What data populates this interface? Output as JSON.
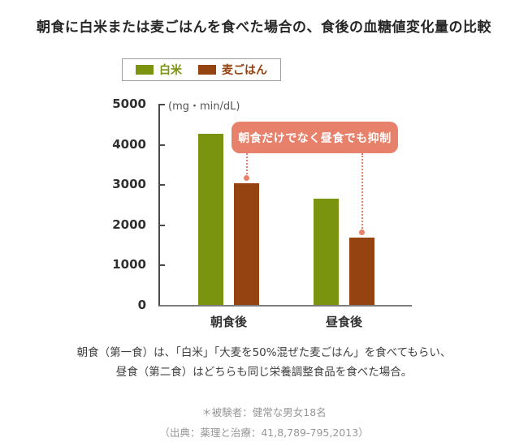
{
  "title": "朝食に白米または麦ごはんを食べた場合の、食後の血糖値変化量の比較",
  "colors": {
    "white_rice_green": "#7a9410",
    "barley_brown": "#964312",
    "annotation": "#e8816b",
    "axis": "#4a4a4a",
    "baseline": "#7d7d7d",
    "title_text": "#262626",
    "note_text": "#404040",
    "citation_text": "#979797"
  },
  "legend": {
    "items": [
      {
        "label": "白米",
        "color": "#7a9410"
      },
      {
        "label": "麦ごはん",
        "color": "#964312"
      }
    ]
  },
  "chart_data": {
    "type": "bar",
    "title": "朝食に白米または麦ごはんを食べた場合の、食後の血糖値変化量の比較",
    "unit_label": "(mg・min/dL)",
    "categories": [
      "朝食後",
      "昼食後"
    ],
    "series": [
      {
        "name": "白米",
        "color": "#7a9410",
        "values": [
          4250,
          2650
        ]
      },
      {
        "name": "麦ごはん",
        "color": "#964312",
        "values": [
          3030,
          1680
        ]
      }
    ],
    "ylim": [
      0,
      5000
    ],
    "yticks": [
      0,
      1000,
      2000,
      3000,
      4000,
      5000
    ],
    "grid": false,
    "legend_position": "top",
    "annotation": "朝食だけでなく昼食でも抑制"
  },
  "notes": {
    "line1": "朝食（第一食）は、「白米」「大麦を50%混ぜた麦ごはん」を食べてもらい、",
    "line2": "昼食（第二食）はどちらも同じ栄養調整食品を食べた場合。"
  },
  "citation": {
    "line1": "＊被験者：健常な男女18名",
    "line2": "（出典：薬理と治療：41,8,789-795,2013）"
  }
}
